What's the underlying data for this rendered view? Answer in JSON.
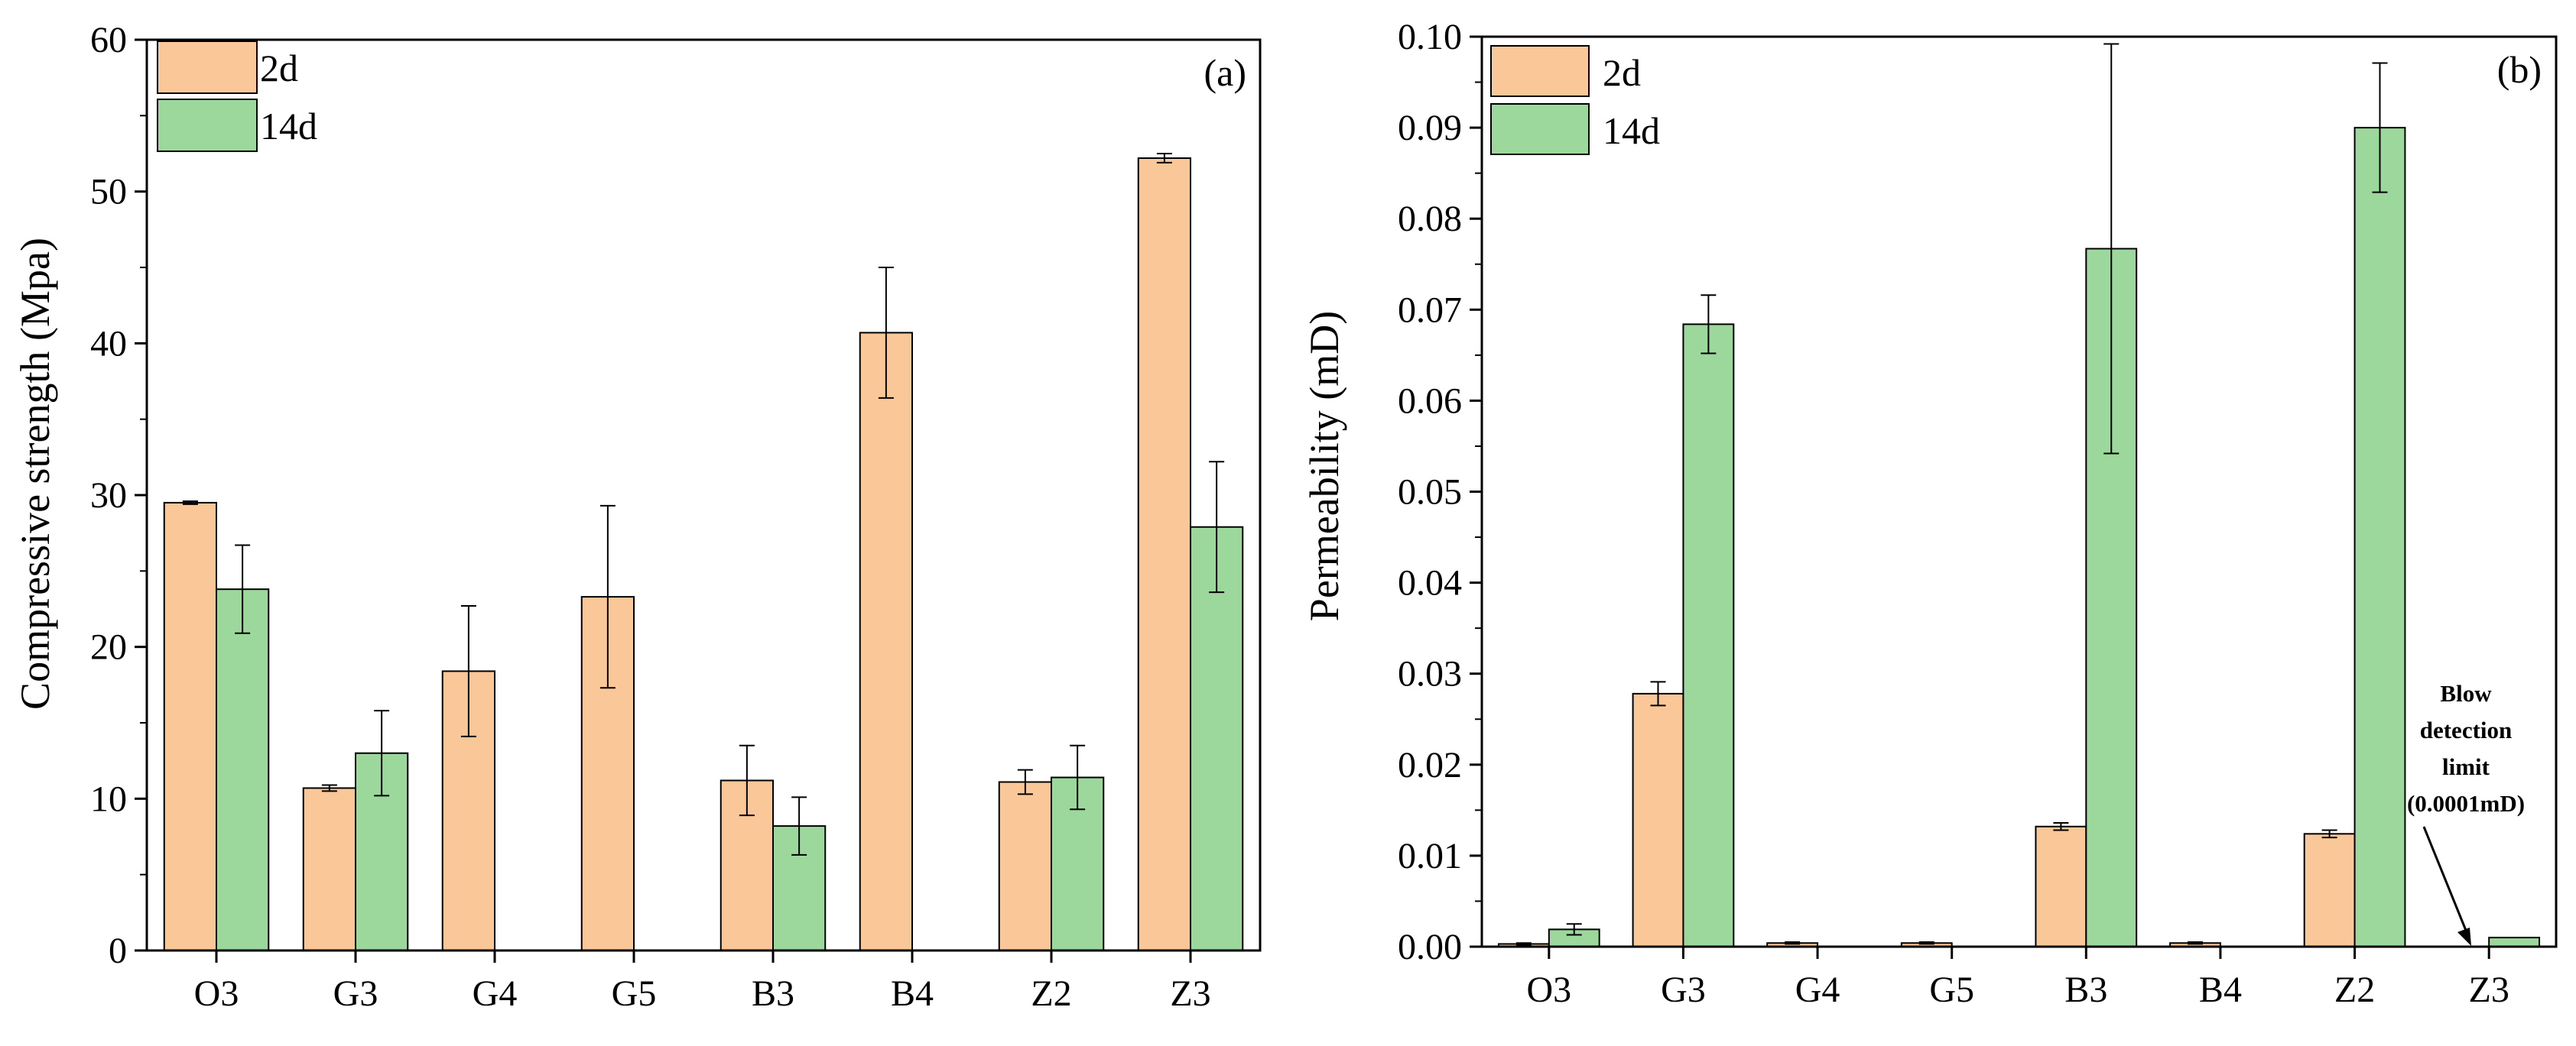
{
  "colors": {
    "series_2d_fill": "#FAC898",
    "series_14d_fill": "#9CD89C",
    "axis": "#000000",
    "background": "#FFFFFF"
  },
  "chart_data": [
    {
      "type": "bar",
      "panel_label": "(a)",
      "title": "",
      "xlabel": "",
      "ylabel": "Compressive strength (Mpa)",
      "categories": [
        "O3",
        "G3",
        "G4",
        "G5",
        "B3",
        "B4",
        "Z2",
        "Z3"
      ],
      "ylim": [
        0,
        60
      ],
      "yticks": [
        0,
        10,
        20,
        30,
        40,
        50,
        60
      ],
      "ytick_labels": [
        "0",
        "10",
        "20",
        "30",
        "40",
        "50",
        "60"
      ],
      "legend": {
        "position": "top-left",
        "entries": [
          "2d",
          "14d"
        ]
      },
      "series": [
        {
          "name": "2d",
          "values": [
            29.5,
            10.7,
            18.4,
            23.3,
            11.2,
            40.7,
            11.1,
            52.2
          ],
          "errors": [
            0.1,
            0.2,
            4.3,
            6.0,
            2.3,
            4.3,
            0.8,
            0.3
          ]
        },
        {
          "name": "14d",
          "values": [
            23.8,
            13.0,
            null,
            null,
            8.2,
            null,
            11.4,
            27.9
          ],
          "errors": [
            2.9,
            2.8,
            null,
            null,
            1.9,
            null,
            2.1,
            4.3
          ]
        }
      ],
      "annotations": []
    },
    {
      "type": "bar",
      "panel_label": "(b)",
      "title": "",
      "xlabel": "",
      "ylabel": "Permeability (mD)",
      "categories": [
        "O3",
        "G3",
        "G4",
        "G5",
        "B3",
        "B4",
        "Z2",
        "Z3"
      ],
      "ylim": [
        0,
        0.1
      ],
      "yticks": [
        0,
        0.01,
        0.02,
        0.03,
        0.04,
        0.05,
        0.06,
        0.07,
        0.08,
        0.09,
        0.1
      ],
      "ytick_labels": [
        "0.00",
        "0.01",
        "0.02",
        "0.03",
        "0.04",
        "0.05",
        "0.06",
        "0.07",
        "0.08",
        "0.09",
        "0.10"
      ],
      "legend": {
        "position": "top-left",
        "entries": [
          "2d",
          "14d"
        ]
      },
      "series": [
        {
          "name": "2d",
          "values": [
            0.0003,
            0.0278,
            0.0004,
            0.0004,
            0.0132,
            0.0004,
            0.0124,
            0
          ],
          "errors": [
            0.0001,
            0.0013,
            0.0001,
            0.0001,
            0.0004,
            0.0001,
            0.0004,
            0
          ]
        },
        {
          "name": "14d",
          "values": [
            0.0019,
            0.0684,
            null,
            null,
            0.0767,
            null,
            0.09,
            0.001
          ],
          "errors": [
            0.0006,
            0.0032,
            null,
            null,
            0.0225,
            null,
            0.0071,
            0
          ]
        }
      ],
      "annotations": [
        {
          "lines": [
            "Blow",
            "detection",
            "limit",
            "(0.0001mD)"
          ],
          "points_to": {
            "category": "Z3",
            "series": "2d",
            "value": 0
          }
        }
      ]
    }
  ]
}
